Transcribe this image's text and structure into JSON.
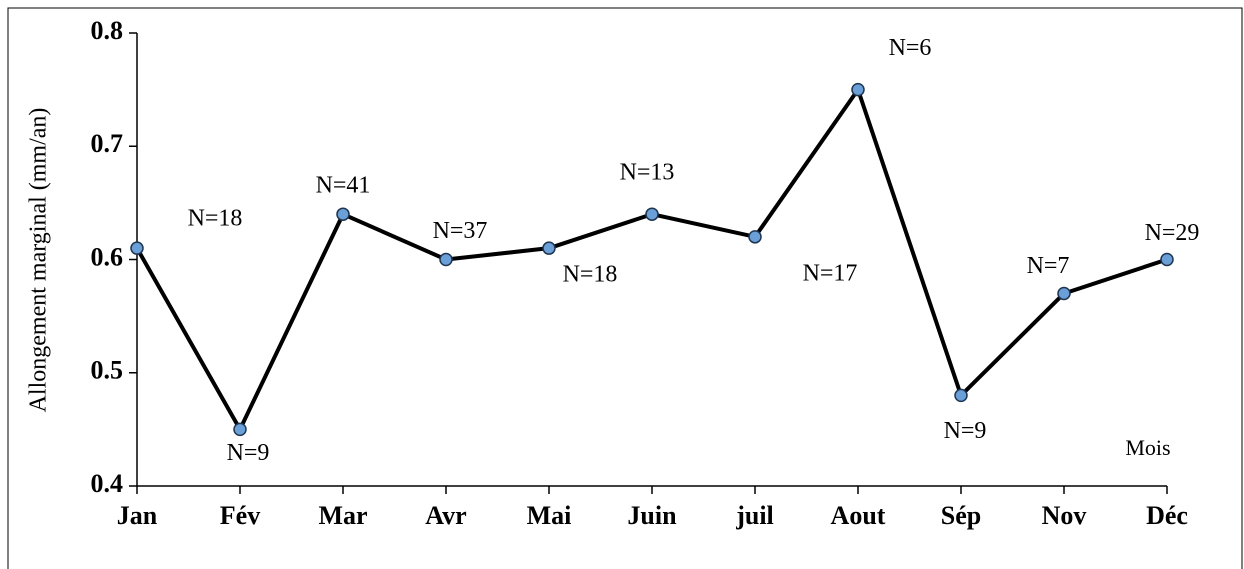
{
  "chart_data": {
    "type": "line",
    "y_label": "Allongement marginal (mm/an)",
    "x_label": "Mois",
    "categories": [
      "Jan",
      "Fév",
      "Mar",
      "Avr",
      "Mai",
      "Juin",
      "juil",
      "Aout",
      "Sép",
      "Nov",
      "Déc"
    ],
    "series": [
      {
        "color": "#000000",
        "marker_color": "#6a9fd8",
        "values": [
          0.61,
          0.45,
          0.64,
          0.6,
          0.61,
          0.64,
          0.62,
          0.75,
          0.48,
          0.57,
          0.6
        ]
      }
    ],
    "annotations": [
      "N=18",
      "N=9",
      "N=41",
      "N=37",
      "N=18",
      "N=13",
      "N=17",
      "N=6",
      "N=9",
      "N=7",
      "N=29"
    ],
    "ylim": [
      0.4,
      0.8
    ],
    "yticks": [
      0.4,
      0.5,
      0.6,
      0.7,
      0.8
    ],
    "grid": false
  }
}
